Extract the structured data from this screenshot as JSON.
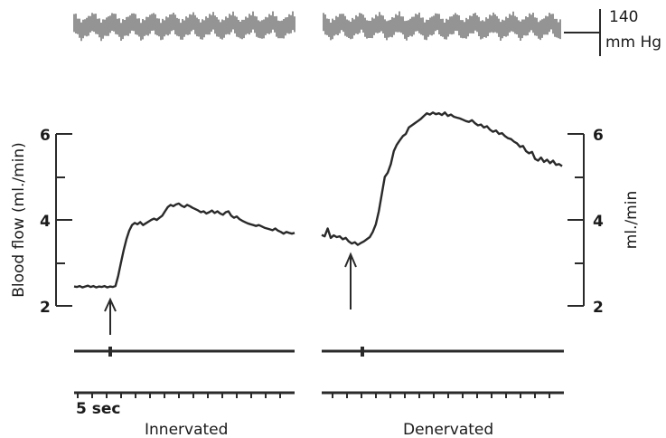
{
  "chart_data": [
    {
      "type": "line",
      "panel": "Innervated",
      "title": "Innervated",
      "ylabel": "Blood flow (ml./min)",
      "ylim": [
        2,
        6
      ],
      "yticks": [
        "2",
        "4",
        "6"
      ],
      "x_unit": "sec",
      "x": [
        0,
        1,
        2,
        3,
        4,
        5,
        6,
        7,
        8,
        9,
        10,
        11,
        12,
        13,
        14,
        15,
        16,
        17,
        18,
        19,
        20,
        21,
        22,
        23,
        24,
        25,
        26,
        27,
        28,
        29,
        30,
        31,
        32,
        33,
        34,
        35,
        36,
        37,
        38,
        39,
        40,
        41,
        42,
        43,
        44,
        45,
        46,
        47,
        48,
        49,
        50,
        51,
        52,
        53,
        54,
        55,
        56,
        57,
        58,
        59,
        60,
        61,
        62,
        63,
        64,
        65,
        66,
        67,
        68,
        69,
        70,
        71,
        72,
        73,
        74,
        75,
        76,
        77,
        78,
        79,
        80
      ],
      "series": [
        {
          "values": [
            2.45,
            2.44,
            2.46,
            2.43,
            2.45,
            2.47,
            2.44,
            2.46,
            2.43,
            2.45,
            2.44,
            2.46,
            2.43,
            2.45,
            2.44,
            2.46,
            2.7,
            3.0,
            3.3,
            3.55,
            3.75,
            3.88,
            3.93,
            3.9,
            3.95,
            3.88,
            3.92,
            3.96,
            4.0,
            4.03,
            4.0,
            4.05,
            4.1,
            4.2,
            4.3,
            4.35,
            4.32,
            4.36,
            4.38,
            4.33,
            4.3,
            4.35,
            4.32,
            4.28,
            4.25,
            4.22,
            4.18,
            4.2,
            4.15,
            4.18,
            4.22,
            4.16,
            4.2,
            4.15,
            4.12,
            4.18,
            4.2,
            4.1,
            4.05,
            4.08,
            4.02,
            3.98,
            3.95,
            3.92,
            3.9,
            3.88,
            3.86,
            3.88,
            3.85,
            3.82,
            3.8,
            3.78,
            3.76,
            3.8,
            3.75,
            3.72,
            3.68,
            3.72,
            3.7,
            3.68,
            3.7
          ]
        }
      ],
      "stimulus_arrow_at": 16
    },
    {
      "type": "line",
      "panel": "Denervated",
      "title": "Denervated",
      "ylabel": "ml./min",
      "ylim": [
        2,
        6
      ],
      "yticks": [
        "2",
        "4",
        "6"
      ],
      "x_unit": "sec",
      "x": [
        0,
        1,
        2,
        3,
        4,
        5,
        6,
        7,
        8,
        9,
        10,
        11,
        12,
        13,
        14,
        15,
        16,
        17,
        18,
        19,
        20,
        21,
        22,
        23,
        24,
        25,
        26,
        27,
        28,
        29,
        30,
        31,
        32,
        33,
        34,
        35,
        36,
        37,
        38,
        39,
        40,
        41,
        42,
        43,
        44,
        45,
        46,
        47,
        48,
        49,
        50,
        51,
        52,
        53,
        54,
        55,
        56,
        57,
        58,
        59,
        60,
        61,
        62,
        63,
        64,
        65,
        66,
        67,
        68,
        69,
        70,
        71,
        72,
        73,
        74,
        75,
        76,
        77,
        78,
        79,
        80
      ],
      "series": [
        {
          "values": [
            3.65,
            3.62,
            3.8,
            3.58,
            3.64,
            3.6,
            3.62,
            3.55,
            3.58,
            3.5,
            3.45,
            3.48,
            3.42,
            3.46,
            3.5,
            3.55,
            3.6,
            3.72,
            3.9,
            4.2,
            4.6,
            5.0,
            5.1,
            5.3,
            5.6,
            5.75,
            5.85,
            5.95,
            6.0,
            6.15,
            6.2,
            6.25,
            6.3,
            6.35,
            6.42,
            6.48,
            6.45,
            6.5,
            6.46,
            6.48,
            6.44,
            6.5,
            6.42,
            6.45,
            6.4,
            6.38,
            6.36,
            6.33,
            6.3,
            6.28,
            6.32,
            6.25,
            6.2,
            6.22,
            6.15,
            6.18,
            6.1,
            6.05,
            6.08,
            6.0,
            6.02,
            5.95,
            5.9,
            5.88,
            5.82,
            5.78,
            5.7,
            5.72,
            5.6,
            5.55,
            5.58,
            5.42,
            5.38,
            5.45,
            5.35,
            5.4,
            5.32,
            5.38,
            5.28,
            5.3,
            5.25
          ]
        }
      ],
      "stimulus_arrow_at": 16
    }
  ],
  "labels": {
    "pressure_scale_value": "140",
    "pressure_scale_unit": "mm Hg",
    "left_ylabel": "Blood flow (ml./min)",
    "right_ylabel": "ml./min",
    "ytick_2": "2",
    "ytick_4": "4",
    "ytick_6": "6",
    "time_marker": "5 sec",
    "panel_left": "Innervated",
    "panel_right": "Denervated"
  },
  "colors": {
    "trace": "#2a2a2a",
    "text": "#1a1a1a"
  }
}
